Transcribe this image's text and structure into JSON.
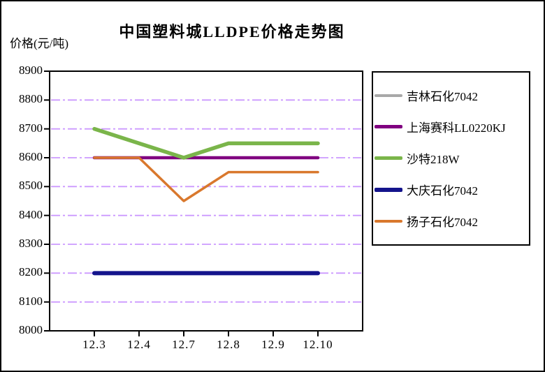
{
  "chart_data": {
    "type": "line",
    "title": "中国塑料城LLDPE价格走势图",
    "ylabel": "价格(元/吨)",
    "xlabel": "",
    "categories": [
      "12.3",
      "12.4",
      "12.7",
      "12.8",
      "12.9",
      "12.10"
    ],
    "ylim": [
      8000,
      8900
    ],
    "ytick_interval": 100,
    "yticks": [
      8900,
      8800,
      8700,
      8600,
      8500,
      8400,
      8300,
      8200,
      8100,
      8000
    ],
    "grid": "horizontal dash-dot lines at each ytick",
    "gridline_color": "#CC99FF",
    "axis_color": "#000000",
    "background_color": "#FFFFFF",
    "legend_position": "right",
    "series": [
      {
        "name": "吉林石化7042",
        "color": "#A8A8A8",
        "line_width": 4,
        "values": [
          8600,
          8600,
          8600,
          8600,
          8600,
          8600
        ],
        "note": "line fully hidden behind 上海赛科LL0220KJ line in the plot"
      },
      {
        "name": "上海赛科LL0220KJ",
        "color": "#800080",
        "line_width": 4.5,
        "values": [
          8600,
          8600,
          8600,
          8600,
          8600,
          8600
        ]
      },
      {
        "name": "沙特218W",
        "color": "#7AB54A",
        "line_width": 5.5,
        "values": [
          8700,
          8650,
          8600,
          8650,
          8650,
          8650
        ]
      },
      {
        "name": "大庆石化7042",
        "color": "#14148C",
        "line_width": 6,
        "values": [
          8200,
          8200,
          8200,
          8200,
          8200,
          8200
        ]
      },
      {
        "name": "扬子石化7042",
        "color": "#D9782D",
        "line_width": 3.5,
        "values": [
          8600,
          8600,
          8450,
          8550,
          8550,
          8550
        ]
      }
    ]
  }
}
